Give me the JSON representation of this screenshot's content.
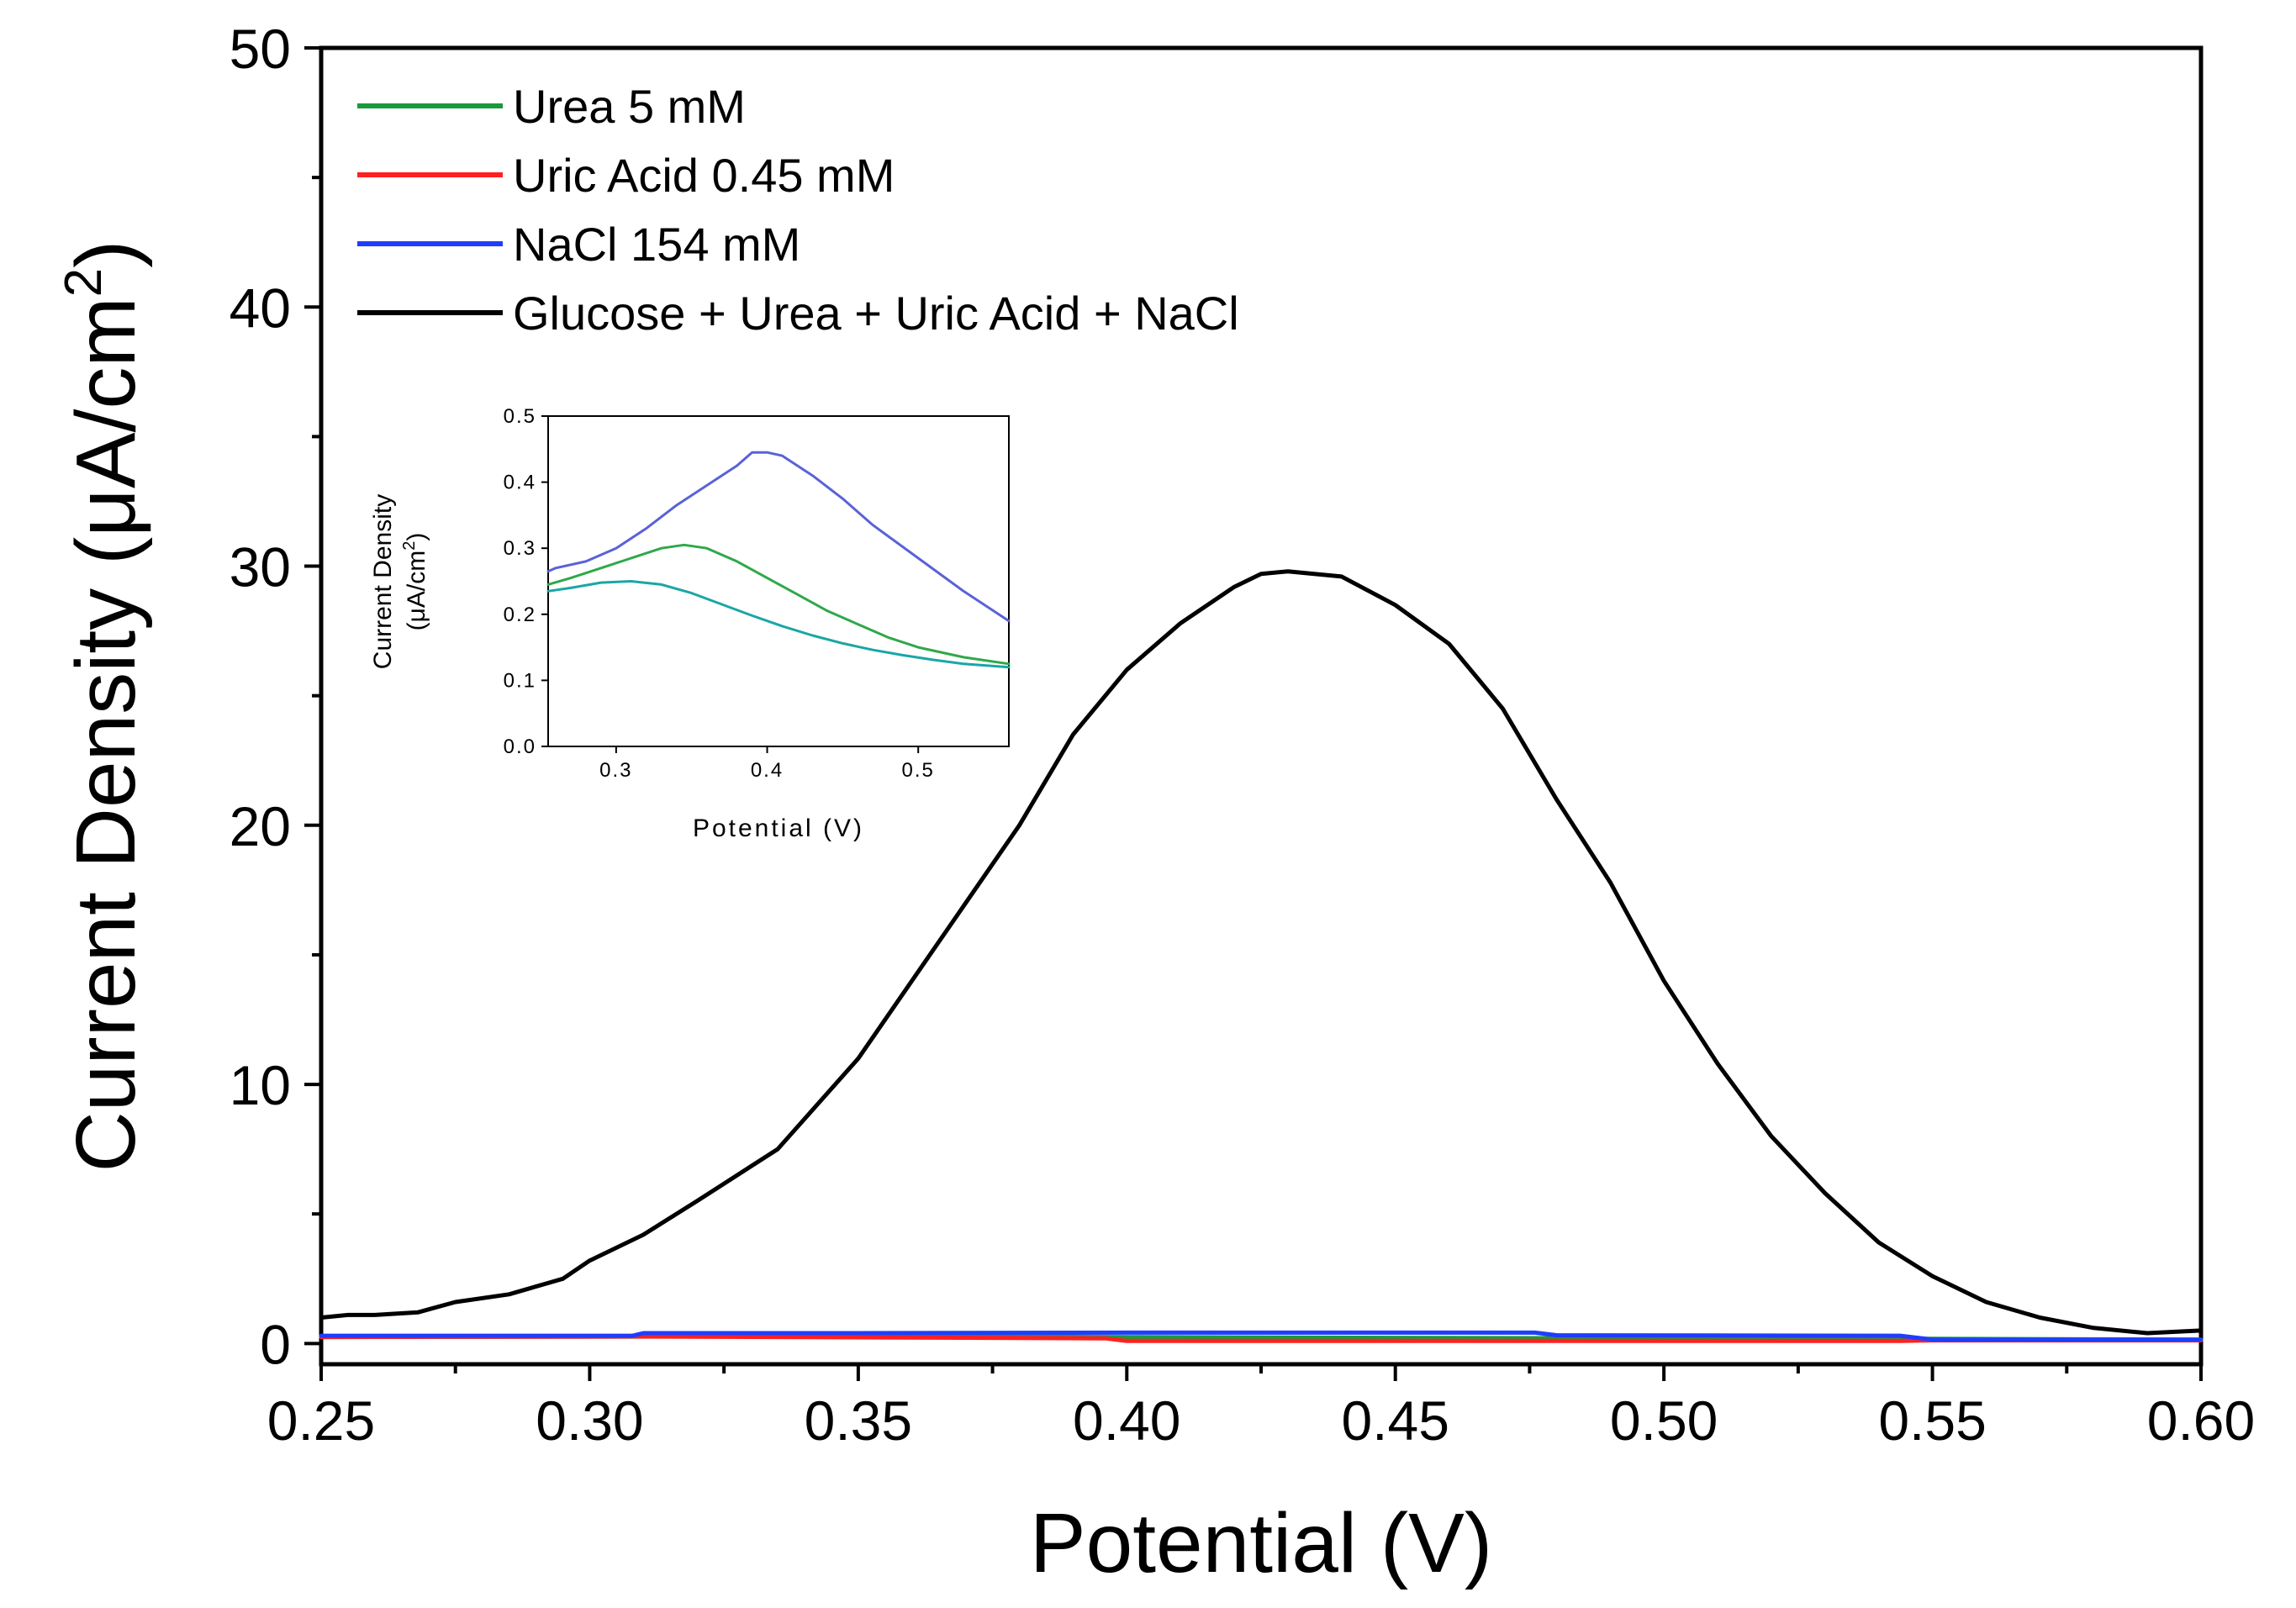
{
  "chart_data": [
    {
      "type": "line",
      "role": "main",
      "title": "",
      "xlabel": "Potential (V)",
      "ylabel": "Current Density (μA/cm",
      "ylabel_superscript": "2",
      "ylabel_close": ")",
      "xlim": [
        0.25,
        0.6
      ],
      "ylim": [
        -0.8,
        50
      ],
      "xticks": [
        0.25,
        0.3,
        0.35,
        0.4,
        0.45,
        0.5,
        0.55,
        0.6
      ],
      "xtick_labels": [
        "0.25",
        "0.30",
        "0.35",
        "0.40",
        "0.45",
        "0.50",
        "0.55",
        "0.60"
      ],
      "yticks": [
        0,
        10,
        20,
        30,
        40,
        50
      ],
      "ytick_labels": [
        "0",
        "10",
        "20",
        "30",
        "40",
        "50"
      ],
      "grid": false,
      "legend_position": "top-left",
      "series": [
        {
          "name": "Urea 5 mM",
          "color": "#1a9a3a",
          "x": [
            0.25,
            0.35,
            0.45,
            0.55,
            0.6
          ],
          "y": [
            0.25,
            0.28,
            0.22,
            0.18,
            0.15
          ]
        },
        {
          "name": "Uric Acid 0.45 mM",
          "color": "#ff2020",
          "x": [
            0.25,
            0.31,
            0.396,
            0.4,
            0.45,
            0.544,
            0.55,
            0.6
          ],
          "y": [
            0.25,
            0.27,
            0.2,
            0.1,
            0.1,
            0.1,
            0.12,
            0.12
          ]
        },
        {
          "name": "NaCl 154 mM",
          "color": "#1f3dff",
          "x": [
            0.25,
            0.308,
            0.31,
            0.35,
            0.4,
            0.45,
            0.476,
            0.48,
            0.544,
            0.55,
            0.6
          ],
          "y": [
            0.3,
            0.3,
            0.4,
            0.4,
            0.42,
            0.42,
            0.42,
            0.32,
            0.3,
            0.15,
            0.15
          ]
        },
        {
          "name": "Glucose + Urea + Uric Acid + NaCl",
          "color": "#000000",
          "x": [
            0.25,
            0.255,
            0.26,
            0.268,
            0.275,
            0.285,
            0.295,
            0.3,
            0.31,
            0.32,
            0.335,
            0.35,
            0.365,
            0.38,
            0.39,
            0.4,
            0.41,
            0.42,
            0.425,
            0.43,
            0.44,
            0.45,
            0.46,
            0.47,
            0.48,
            0.49,
            0.5,
            0.51,
            0.52,
            0.53,
            0.54,
            0.55,
            0.56,
            0.57,
            0.58,
            0.59,
            0.6
          ],
          "y": [
            1.0,
            1.1,
            1.1,
            1.2,
            1.6,
            1.9,
            2.5,
            3.2,
            4.2,
            5.5,
            7.5,
            11.0,
            15.5,
            20.0,
            23.5,
            26.0,
            27.8,
            29.2,
            29.7,
            29.8,
            29.6,
            28.5,
            27.0,
            24.5,
            21.0,
            17.8,
            14.0,
            10.8,
            8.0,
            5.8,
            3.9,
            2.6,
            1.6,
            1.0,
            0.6,
            0.4,
            0.5
          ]
        }
      ]
    },
    {
      "type": "line",
      "role": "inset",
      "title": "",
      "xlabel": "Potential (V)",
      "ylabel_line1": "Current Density",
      "ylabel_line2": "(μA/cm",
      "ylabel_superscript": "2",
      "ylabel_close": ")",
      "xlim": [
        0.255,
        0.56
      ],
      "ylim": [
        0,
        0.5
      ],
      "xticks": [
        0.3,
        0.4,
        0.5
      ],
      "xtick_labels": [
        "0.3",
        "0.4",
        "0.5"
      ],
      "yticks": [
        0,
        0.1,
        0.2,
        0.3,
        0.4,
        0.5
      ],
      "ytick_labels": [
        "0.0",
        "0.1",
        "0.2",
        "0.3",
        "0.4",
        "0.5"
      ],
      "grid": false,
      "series": [
        {
          "name": "NaCl 154 mM",
          "color": "#5a62d6",
          "x": [
            0.255,
            0.26,
            0.28,
            0.3,
            0.32,
            0.34,
            0.36,
            0.38,
            0.39,
            0.4,
            0.41,
            0.43,
            0.45,
            0.47,
            0.5,
            0.53,
            0.56
          ],
          "y": [
            0.265,
            0.27,
            0.28,
            0.3,
            0.33,
            0.365,
            0.395,
            0.425,
            0.445,
            0.445,
            0.44,
            0.41,
            0.375,
            0.335,
            0.285,
            0.235,
            0.19
          ]
        },
        {
          "name": "Urea 5 mM",
          "color": "#2fa84a",
          "x": [
            0.255,
            0.27,
            0.29,
            0.31,
            0.33,
            0.345,
            0.36,
            0.38,
            0.4,
            0.42,
            0.44,
            0.46,
            0.48,
            0.5,
            0.53,
            0.56
          ],
          "y": [
            0.245,
            0.255,
            0.27,
            0.285,
            0.3,
            0.305,
            0.3,
            0.28,
            0.255,
            0.23,
            0.205,
            0.185,
            0.165,
            0.15,
            0.135,
            0.125
          ]
        },
        {
          "name": "Uric Acid 0.45 mM",
          "color": "#1aa6a6",
          "x": [
            0.255,
            0.27,
            0.29,
            0.31,
            0.33,
            0.35,
            0.37,
            0.39,
            0.41,
            0.43,
            0.45,
            0.47,
            0.49,
            0.51,
            0.53,
            0.56
          ],
          "y": [
            0.235,
            0.24,
            0.248,
            0.25,
            0.245,
            0.232,
            0.215,
            0.198,
            0.182,
            0.168,
            0.156,
            0.146,
            0.138,
            0.131,
            0.125,
            0.12
          ]
        }
      ]
    }
  ]
}
